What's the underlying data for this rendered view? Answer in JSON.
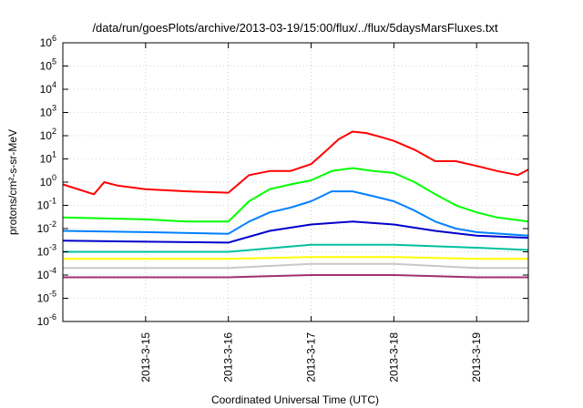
{
  "chart_data": {
    "type": "line",
    "title": "/data/run/goesPlots/archive/2013-03-19/15:00/flux/../flux/5daysMarsFluxes.txt",
    "xlabel": "Coordinated Universal Time (UTC)",
    "ylabel": "protons/cm²-s-sr-MeV",
    "y_scale": "log",
    "ylim": [
      1e-06,
      1000000.0
    ],
    "y_ticks": [
      {
        "base": "10",
        "exp": "-6"
      },
      {
        "base": "10",
        "exp": "-5"
      },
      {
        "base": "10",
        "exp": "-4"
      },
      {
        "base": "10",
        "exp": "-3"
      },
      {
        "base": "10",
        "exp": "-2"
      },
      {
        "base": "10",
        "exp": "-1"
      },
      {
        "base": "10",
        "exp": "0"
      },
      {
        "base": "10",
        "exp": "1"
      },
      {
        "base": "10",
        "exp": "2"
      },
      {
        "base": "10",
        "exp": "3"
      },
      {
        "base": "10",
        "exp": "4"
      },
      {
        "base": "10",
        "exp": "5"
      },
      {
        "base": "10",
        "exp": "6"
      }
    ],
    "x_range": [
      "2013-03-14 00:00",
      "2013-03-19 15:00"
    ],
    "x_ticks": [
      "2013-3-15",
      "2013-3-16",
      "2013-3-17",
      "2013-3-18",
      "2013-3-19"
    ],
    "grid": true,
    "series": [
      {
        "color": "#ff0000",
        "x": [
          "2013-03-14 00:00",
          "2013-03-14 09:00",
          "2013-03-14 12:00",
          "2013-03-14 16:00",
          "2013-03-15 00:00",
          "2013-03-15 12:00",
          "2013-03-16 00:00",
          "2013-03-16 06:00",
          "2013-03-16 12:00",
          "2013-03-16 18:00",
          "2013-03-17 00:00",
          "2013-03-17 04:00",
          "2013-03-17 08:00",
          "2013-03-17 12:00",
          "2013-03-17 16:00",
          "2013-03-17 20:00",
          "2013-03-18 00:00",
          "2013-03-18 06:00",
          "2013-03-18 12:00",
          "2013-03-18 18:00",
          "2013-03-19 00:00",
          "2013-03-19 06:00",
          "2013-03-19 12:00",
          "2013-03-19 15:00"
        ],
        "y": [
          0.8,
          0.3,
          1.0,
          0.7,
          0.5,
          0.4,
          0.35,
          2.0,
          3.0,
          3.0,
          6.0,
          20,
          70,
          150,
          130,
          90,
          60,
          25,
          8,
          8,
          5,
          3,
          2,
          3.5
        ]
      },
      {
        "color": "#00ff00",
        "x": [
          "2013-03-14 00:00",
          "2013-03-15 00:00",
          "2013-03-15 12:00",
          "2013-03-16 00:00",
          "2013-03-16 06:00",
          "2013-03-16 12:00",
          "2013-03-16 18:00",
          "2013-03-17 00:00",
          "2013-03-17 06:00",
          "2013-03-17 12:00",
          "2013-03-17 18:00",
          "2013-03-18 00:00",
          "2013-03-18 06:00",
          "2013-03-18 12:00",
          "2013-03-18 18:00",
          "2013-03-19 00:00",
          "2013-03-19 06:00",
          "2013-03-19 15:00"
        ],
        "y": [
          0.03,
          0.025,
          0.02,
          0.02,
          0.15,
          0.5,
          0.8,
          1.2,
          3,
          4,
          3,
          2.5,
          1,
          0.3,
          0.1,
          0.05,
          0.03,
          0.02
        ]
      },
      {
        "color": "#0080ff",
        "x": [
          "2013-03-14 00:00",
          "2013-03-15 00:00",
          "2013-03-16 00:00",
          "2013-03-16 06:00",
          "2013-03-16 12:00",
          "2013-03-16 18:00",
          "2013-03-17 00:00",
          "2013-03-17 06:00",
          "2013-03-17 12:00",
          "2013-03-17 18:00",
          "2013-03-18 00:00",
          "2013-03-18 06:00",
          "2013-03-18 12:00",
          "2013-03-18 18:00",
          "2013-03-19 00:00",
          "2013-03-19 15:00"
        ],
        "y": [
          0.008,
          0.007,
          0.006,
          0.02,
          0.05,
          0.08,
          0.15,
          0.4,
          0.4,
          0.25,
          0.15,
          0.06,
          0.02,
          0.01,
          0.007,
          0.005
        ]
      },
      {
        "color": "#0000cc",
        "x": [
          "2013-03-14 00:00",
          "2013-03-16 00:00",
          "2013-03-16 12:00",
          "2013-03-17 00:00",
          "2013-03-17 12:00",
          "2013-03-18 00:00",
          "2013-03-18 12:00",
          "2013-03-19 00:00",
          "2013-03-19 15:00"
        ],
        "y": [
          0.003,
          0.0025,
          0.008,
          0.015,
          0.02,
          0.015,
          0.008,
          0.005,
          0.004
        ]
      },
      {
        "color": "#00c0a0",
        "x": [
          "2013-03-14 00:00",
          "2013-03-16 00:00",
          "2013-03-17 00:00",
          "2013-03-18 00:00",
          "2013-03-19 00:00",
          "2013-03-19 15:00"
        ],
        "y": [
          0.001,
          0.001,
          0.002,
          0.002,
          0.0015,
          0.0012
        ]
      },
      {
        "color": "#ffff00",
        "x": [
          "2013-03-14 00:00",
          "2013-03-16 00:00",
          "2013-03-17 00:00",
          "2013-03-18 00:00",
          "2013-03-19 00:00",
          "2013-03-19 15:00"
        ],
        "y": [
          0.0005,
          0.0005,
          0.0006,
          0.0006,
          0.0005,
          0.0005
        ]
      },
      {
        "color": "#c8c8c8",
        "x": [
          "2013-03-14 00:00",
          "2013-03-16 00:00",
          "2013-03-17 00:00",
          "2013-03-18 00:00",
          "2013-03-19 00:00",
          "2013-03-19 15:00"
        ],
        "y": [
          0.0002,
          0.0002,
          0.0003,
          0.0003,
          0.0002,
          0.0002
        ]
      },
      {
        "color": "#a03070",
        "x": [
          "2013-03-14 00:00",
          "2013-03-16 00:00",
          "2013-03-17 00:00",
          "2013-03-18 00:00",
          "2013-03-19 00:00",
          "2013-03-19 15:00"
        ],
        "y": [
          8e-05,
          8e-05,
          0.0001,
          0.0001,
          8e-05,
          8e-05
        ]
      }
    ]
  }
}
